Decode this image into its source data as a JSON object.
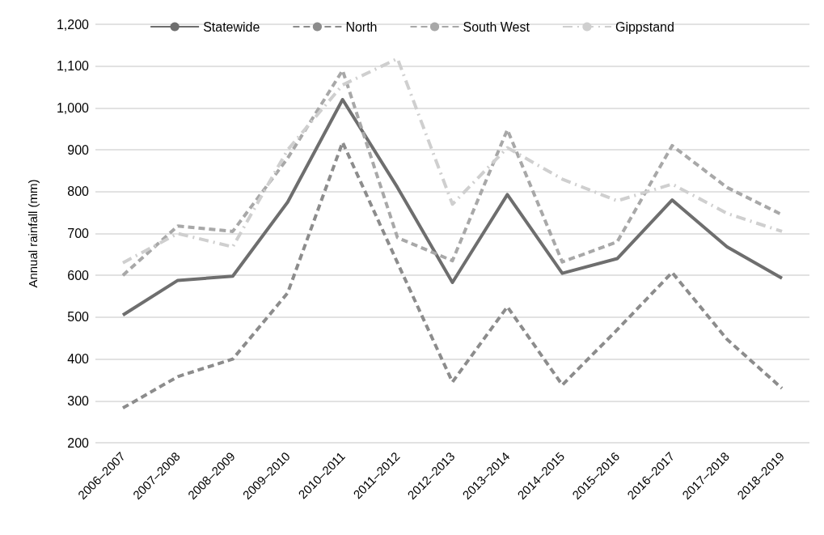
{
  "chart_data": {
    "type": "line",
    "ylabel": "Annual rainfall (mm)",
    "categories": [
      "2006–2007",
      "2007–2008",
      "2008–2009",
      "2009–2010",
      "2010–2011",
      "2011–2012",
      "2012–2013",
      "2013–2014",
      "2014–2015",
      "2015–2016",
      "2016–2017",
      "2017–2018",
      "2018–2019"
    ],
    "series": [
      {
        "name": "Statewide",
        "color": "#6e6e6e",
        "line_style": "solid",
        "values": [
          505,
          588,
          598,
          775,
          1020,
          810,
          583,
          793,
          605,
          640,
          780,
          668,
          593
        ]
      },
      {
        "name": "North",
        "color": "#8c8c8c",
        "line_style": "dashed",
        "values": [
          283,
          358,
          400,
          558,
          918,
          630,
          345,
          525,
          338,
          470,
          607,
          447,
          330
        ]
      },
      {
        "name": "South West",
        "color": "#a8a8a8",
        "line_style": "dashed",
        "values": [
          600,
          718,
          705,
          880,
          1090,
          690,
          635,
          948,
          632,
          680,
          910,
          810,
          745
        ]
      },
      {
        "name": "Gippstand",
        "color": "#cfcfcf",
        "line_style": "dashdot",
        "values": [
          630,
          700,
          668,
          900,
          1055,
          1118,
          770,
          905,
          830,
          778,
          818,
          748,
          705
        ]
      }
    ],
    "ylim": [
      200,
      1200
    ],
    "yticks": [
      200,
      300,
      400,
      500,
      600,
      700,
      800,
      900,
      {
        "value": 1000,
        "label": "1,000"
      },
      {
        "value": 1100,
        "label": "1,100"
      },
      {
        "value": 1200,
        "label": "1,200"
      }
    ],
    "grid": "y",
    "legend": "top",
    "marker": "none"
  }
}
